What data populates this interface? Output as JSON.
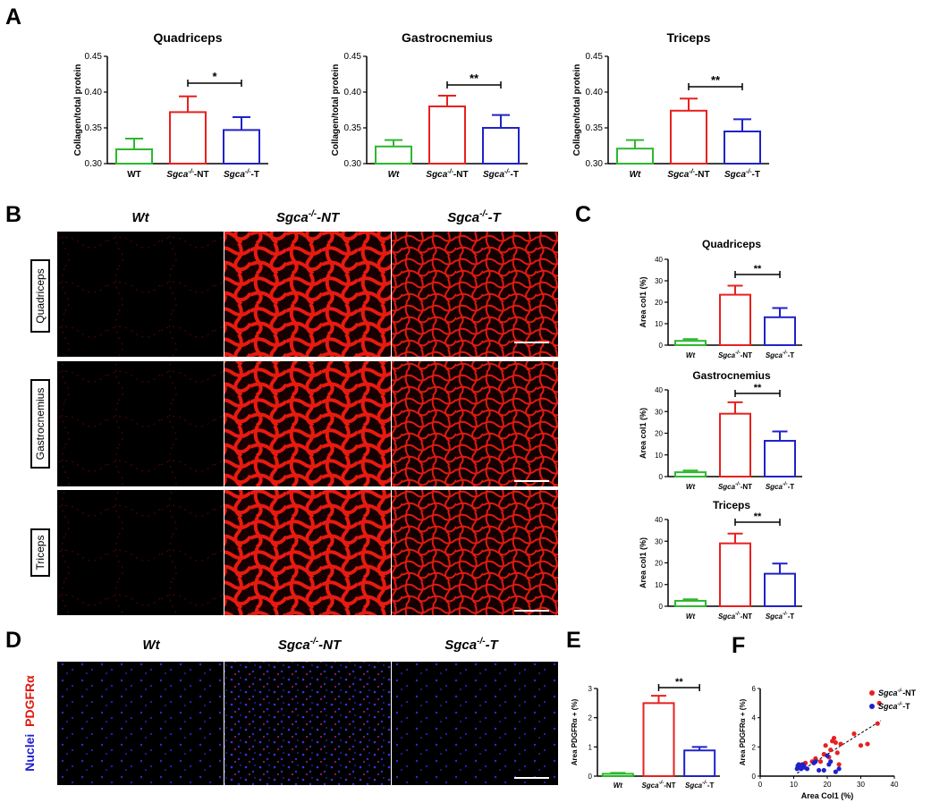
{
  "panels": {
    "a": "A",
    "b": "B",
    "c": "C",
    "d": "D",
    "e": "E",
    "f": "F"
  },
  "colors": {
    "wt": "#2db82d",
    "nt": "#e8201f",
    "t": "#1f22c9",
    "tissue_red": "#e01a10",
    "nuclei_blue": "#2020d0"
  },
  "panel_b": {
    "columns": [
      {
        "base": "Wt",
        "sup": "",
        "suffix": ""
      },
      {
        "base": "Sgca",
        "sup": "-/-",
        "suffix": "-NT"
      },
      {
        "base": "Sgca",
        "sup": "-/-",
        "suffix": "-T"
      }
    ],
    "rows": [
      "Quadriceps",
      "Gastrocnemius",
      "Triceps"
    ]
  },
  "panel_d": {
    "columns": [
      {
        "base": "Wt",
        "sup": "",
        "suffix": ""
      },
      {
        "base": "Sgca",
        "sup": "-/-",
        "suffix": "-NT"
      },
      {
        "base": "Sgca",
        "sup": "-/-",
        "suffix": "-T"
      }
    ],
    "stain_blue": "Nuclei",
    "stain_red": "PDGFRα"
  },
  "chart_data": [
    {
      "id": "A1",
      "type": "bar",
      "title": "Quadriceps",
      "ylabel": "Collagen/total protein",
      "ylim": [
        0.3,
        0.45
      ],
      "yticks": [
        "0.30",
        "0.35",
        "0.40",
        "0.45"
      ],
      "categories": [
        {
          "base": "WT",
          "sup": "",
          "suffix": "",
          "italic": false
        },
        {
          "base": "Sgca",
          "sup": "-/-",
          "suffix": "-NT",
          "italic": true
        },
        {
          "base": "Sgca",
          "sup": "-/-",
          "suffix": "-T",
          "italic": true
        }
      ],
      "values": [
        0.32,
        0.372,
        0.347
      ],
      "errors": [
        0.015,
        0.022,
        0.018
      ],
      "significance": {
        "from": 1,
        "to": 2,
        "label": "*"
      }
    },
    {
      "id": "A2",
      "type": "bar",
      "title": "Gastrocnemius",
      "ylabel": "Collagen/total protein",
      "ylim": [
        0.3,
        0.45
      ],
      "yticks": [
        "0.30",
        "0.35",
        "0.40",
        "0.45"
      ],
      "categories": [
        {
          "base": "Wt",
          "sup": "",
          "suffix": "",
          "italic": true
        },
        {
          "base": "Sgca",
          "sup": "-/-",
          "suffix": "-NT",
          "italic": true
        },
        {
          "base": "Sgca",
          "sup": "-/-",
          "suffix": "-T",
          "italic": true
        }
      ],
      "values": [
        0.324,
        0.38,
        0.35
      ],
      "errors": [
        0.009,
        0.015,
        0.018
      ],
      "significance": {
        "from": 1,
        "to": 2,
        "label": "**"
      }
    },
    {
      "id": "A3",
      "type": "bar",
      "title": "Triceps",
      "ylabel": "Collagen/total protein",
      "ylim": [
        0.3,
        0.45
      ],
      "yticks": [
        "0.30",
        "0.35",
        "0.40",
        "0.45"
      ],
      "categories": [
        {
          "base": "Wt",
          "sup": "",
          "suffix": "",
          "italic": true
        },
        {
          "base": "Sgca",
          "sup": "-/-",
          "suffix": "-NT",
          "italic": true
        },
        {
          "base": "Sgca",
          "sup": "-/-",
          "suffix": "-T",
          "italic": true
        }
      ],
      "values": [
        0.321,
        0.374,
        0.345
      ],
      "errors": [
        0.012,
        0.017,
        0.017
      ],
      "significance": {
        "from": 1,
        "to": 2,
        "label": "**"
      }
    },
    {
      "id": "C1",
      "type": "bar",
      "title": "Quadriceps",
      "ylabel": "Area col1 (%)",
      "ylim": [
        0,
        40
      ],
      "yticks": [
        "0",
        "10",
        "20",
        "30",
        "40"
      ],
      "categories": [
        {
          "base": "Wt",
          "sup": "",
          "suffix": "",
          "italic": true
        },
        {
          "base": "Sgca",
          "sup": "-/-",
          "suffix": "-NT",
          "italic": true
        },
        {
          "base": "Sgca",
          "sup": "-/-",
          "suffix": "-T",
          "italic": true
        }
      ],
      "values": [
        2.0,
        23.5,
        13.0
      ],
      "errors": [
        0.8,
        4.2,
        4.3
      ],
      "significance": {
        "from": 1,
        "to": 2,
        "label": "**"
      }
    },
    {
      "id": "C2",
      "type": "bar",
      "title": "Gastrocnemius",
      "ylabel": "Area col1 (%)",
      "ylim": [
        0,
        40
      ],
      "yticks": [
        "0",
        "10",
        "20",
        "30",
        "40"
      ],
      "categories": [
        {
          "base": "Wt",
          "sup": "",
          "suffix": "",
          "italic": true
        },
        {
          "base": "Sgca",
          "sup": "-/-",
          "suffix": "-NT",
          "italic": true
        },
        {
          "base": "Sgca",
          "sup": "-/-",
          "suffix": "-T",
          "italic": true
        }
      ],
      "values": [
        2.0,
        29.0,
        16.5
      ],
      "errors": [
        0.8,
        5.3,
        4.3
      ],
      "significance": {
        "from": 1,
        "to": 2,
        "label": "**"
      }
    },
    {
      "id": "C3",
      "type": "bar",
      "title": "Triceps",
      "ylabel": "Area col1 (%)",
      "ylim": [
        0,
        40
      ],
      "yticks": [
        "0",
        "10",
        "20",
        "30",
        "40"
      ],
      "categories": [
        {
          "base": "Wt",
          "sup": "",
          "suffix": "",
          "italic": true
        },
        {
          "base": "Sgca",
          "sup": "-/-",
          "suffix": "-NT",
          "italic": true
        },
        {
          "base": "Sgca",
          "sup": "-/-",
          "suffix": "-T",
          "italic": true
        }
      ],
      "values": [
        2.5,
        29.0,
        15.0
      ],
      "errors": [
        0.7,
        4.5,
        4.7
      ],
      "significance": {
        "from": 1,
        "to": 2,
        "label": "**"
      }
    },
    {
      "id": "E",
      "type": "bar",
      "title": "",
      "ylabel": "Area PDGFRα + (%)",
      "ylim": [
        0,
        3
      ],
      "yticks": [
        "0",
        "1",
        "2",
        "3"
      ],
      "categories": [
        {
          "base": "Wt",
          "sup": "",
          "suffix": "",
          "italic": true
        },
        {
          "base": "Sgca",
          "sup": "-/-",
          "suffix": "-NT",
          "italic": true
        },
        {
          "base": "Sgca",
          "sup": "-/-",
          "suffix": "-T",
          "italic": true
        }
      ],
      "values": [
        0.08,
        2.5,
        0.88
      ],
      "errors": [
        0.03,
        0.25,
        0.12
      ],
      "significance": {
        "from": 1,
        "to": 2,
        "label": "**"
      }
    },
    {
      "id": "F",
      "type": "scatter",
      "title": "",
      "xlabel": "Area Col1 (%)",
      "ylabel": "Area PDGFRα + (%)",
      "xlim": [
        0,
        40
      ],
      "ylim": [
        0,
        6
      ],
      "xticks": [
        "0",
        "10",
        "20",
        "30",
        "40"
      ],
      "yticks": [
        "0",
        "2",
        "4",
        "6"
      ],
      "legend_position": "top-right",
      "series": [
        {
          "name": {
            "base": "Sgca",
            "sup": "-/-",
            "suffix": "-NT"
          },
          "color_key": "nt",
          "points": [
            [
              12.5,
              0.8
            ],
            [
              13.5,
              0.9
            ],
            [
              15.5,
              1.0
            ],
            [
              16.5,
              1.2
            ],
            [
              18.0,
              1.0
            ],
            [
              19.0,
              1.5
            ],
            [
              19.5,
              2.1
            ],
            [
              20.5,
              1.3
            ],
            [
              21.0,
              1.8
            ],
            [
              21.5,
              2.4
            ],
            [
              22.0,
              2.6
            ],
            [
              22.5,
              2.3
            ],
            [
              23.0,
              1.6
            ],
            [
              24.0,
              2.2
            ],
            [
              28.0,
              2.9
            ],
            [
              30.0,
              2.1
            ],
            [
              32.0,
              2.2
            ],
            [
              35.0,
              3.6
            ],
            [
              35.5,
              5.0
            ],
            [
              23.5,
              0.8
            ]
          ]
        },
        {
          "name": {
            "base": "Sgca",
            "sup": "-/-",
            "suffix": "-T"
          },
          "color_key": "t",
          "points": [
            [
              11.0,
              0.5
            ],
            [
              11.2,
              0.7
            ],
            [
              11.5,
              0.8
            ],
            [
              11.8,
              0.6
            ],
            [
              12.0,
              0.7
            ],
            [
              12.2,
              0.5
            ],
            [
              12.5,
              0.6
            ],
            [
              12.8,
              0.8
            ],
            [
              13.0,
              0.7
            ],
            [
              13.2,
              0.6
            ],
            [
              14.0,
              0.5
            ],
            [
              16.0,
              0.9
            ],
            [
              17.5,
              0.4
            ],
            [
              19.0,
              0.4
            ],
            [
              20.0,
              1.4
            ],
            [
              20.5,
              0.8
            ],
            [
              21.0,
              1.0
            ],
            [
              22.5,
              0.3
            ],
            [
              23.5,
              0.5
            ],
            [
              16.5,
              1.0
            ]
          ]
        }
      ],
      "trendline": [
        [
          11.0,
          0.2
        ],
        [
          36.0,
          3.8
        ]
      ]
    }
  ]
}
